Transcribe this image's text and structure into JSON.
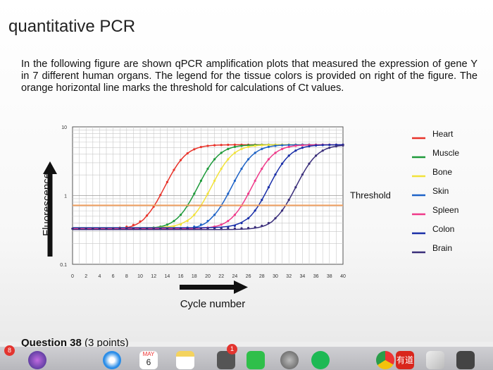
{
  "page": {
    "title": "quantitative PCR",
    "paragraph": "In the following figure are shown qPCR amplification plots that measured the expression of gene Y in 7 different human organs. The legend for the tissue colors is provided on right of the figure. The orange horizontal line marks the threshold for calculations of Ct values.",
    "question_label": "Question 38",
    "question_points": "(3 points)"
  },
  "chart_data": {
    "type": "line",
    "ylabel": "Fluorescence",
    "xlabel": "Cycle number",
    "y_scale": "log",
    "ylim": [
      0.1,
      10
    ],
    "y_ticks": [
      "10",
      "1",
      "0.1"
    ],
    "x_ticks": [
      "0",
      "2",
      "4",
      "6",
      "8",
      "10",
      "12",
      "14",
      "16",
      "18",
      "20",
      "22",
      "24",
      "26",
      "28",
      "30",
      "32",
      "34",
      "36",
      "38",
      "40"
    ],
    "xlim": [
      0,
      40
    ],
    "grid": true,
    "threshold": {
      "label": "Threshold",
      "value": 0.72,
      "color": "#f0a060"
    },
    "baseline": 0.33,
    "plateau": 5.5,
    "series": [
      {
        "name": "Heart",
        "color": "#e8332a",
        "midpoint": 15.6
      },
      {
        "name": "Muscle",
        "color": "#1e9a3a",
        "midpoint": 20.5
      },
      {
        "name": "Bone",
        "color": "#f2e23a",
        "midpoint": 22.5
      },
      {
        "name": "Skin",
        "color": "#1e63c8",
        "midpoint": 25.5
      },
      {
        "name": "Spleen",
        "color": "#ef3a8a",
        "midpoint": 28.5
      },
      {
        "name": "Colon",
        "color": "#1a2fa8",
        "midpoint": 31.0
      },
      {
        "name": "Brain",
        "color": "#3a2e7a",
        "midpoint": 35.0
      }
    ],
    "legend_position": "right"
  },
  "dock": {
    "badge_left": "8",
    "badge_mid": "1",
    "calendar_month": "MAY",
    "calendar_day": "6",
    "app_youdao": "有道"
  }
}
